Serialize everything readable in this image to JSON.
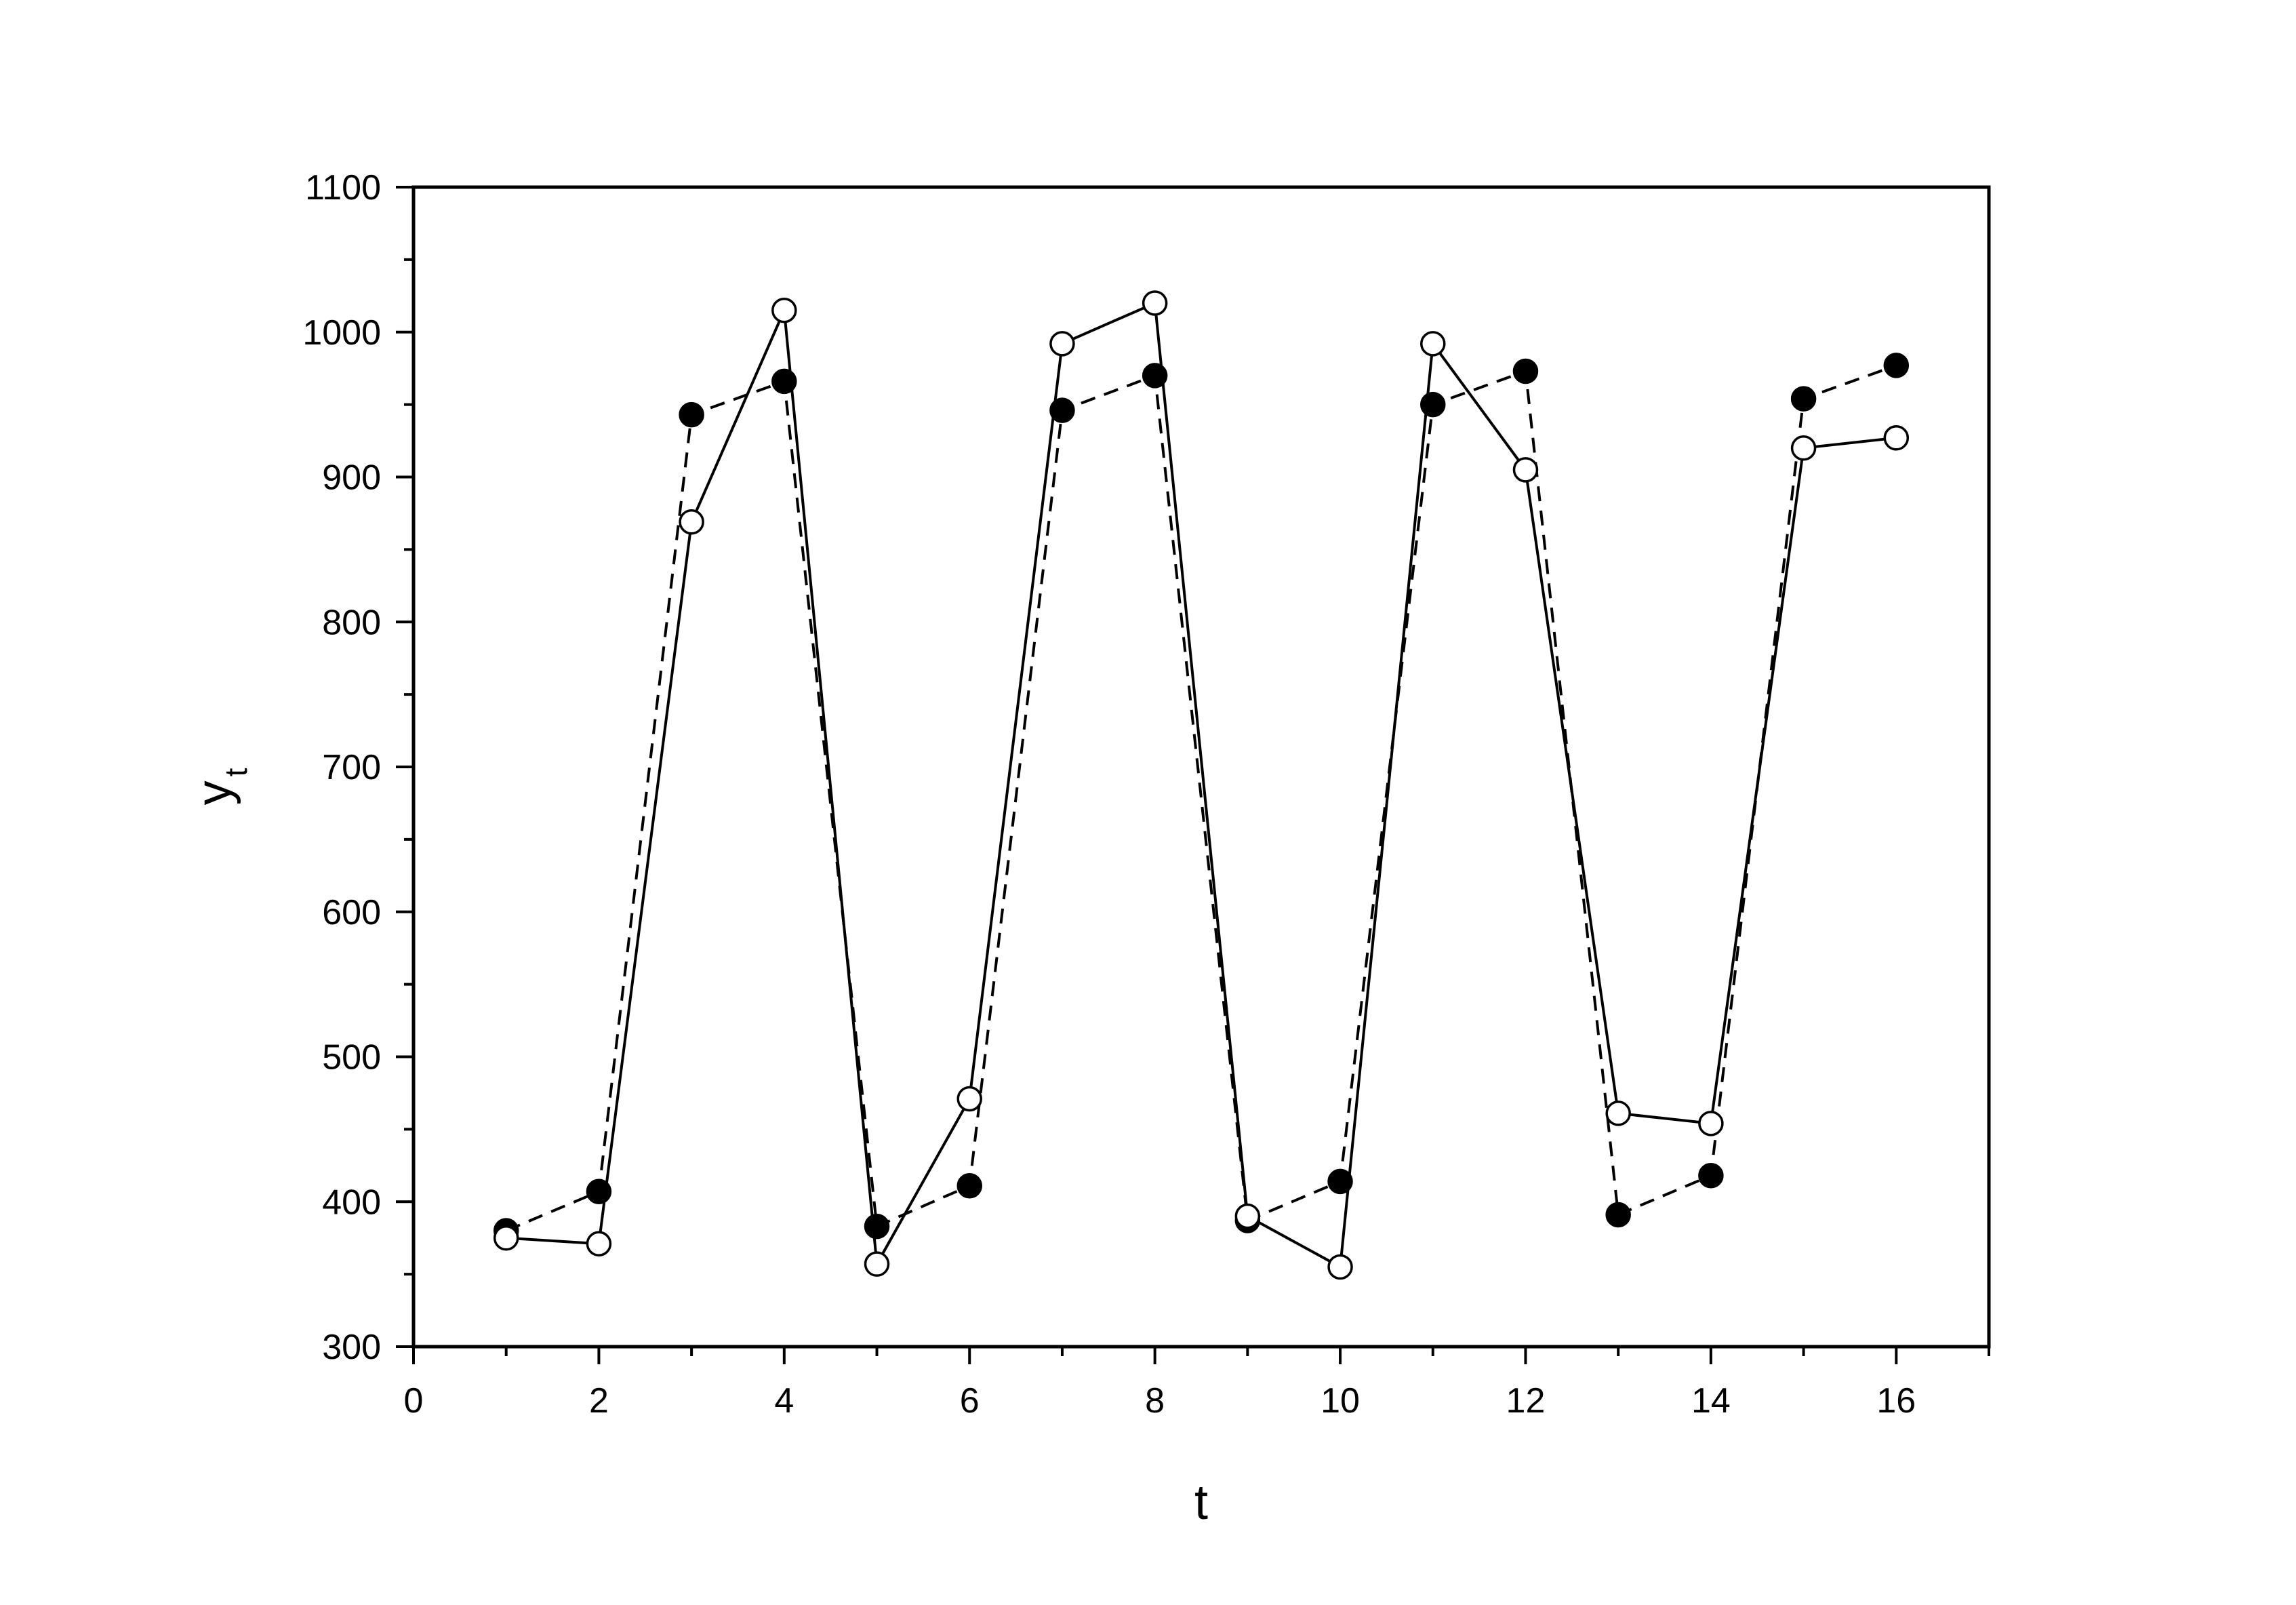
{
  "chart_data": {
    "type": "line",
    "title": "",
    "xlabel": "t",
    "ylabel": "y",
    "ylabel_subscript": "t",
    "xlim": [
      0,
      17
    ],
    "ylim": [
      300,
      1100
    ],
    "x_ticks": [
      0,
      2,
      4,
      6,
      8,
      10,
      12,
      14,
      16
    ],
    "x_tick_labels": [
      "0",
      "2",
      "4",
      "6",
      "8",
      "10",
      "12",
      "14",
      "16"
    ],
    "y_ticks": [
      300,
      400,
      500,
      600,
      700,
      800,
      900,
      1000,
      1100
    ],
    "y_tick_labels": [
      "300",
      "400",
      "500",
      "600",
      "700",
      "800",
      "900",
      "1000",
      "1100"
    ],
    "grid": false,
    "x": [
      1,
      2,
      3,
      4,
      5,
      6,
      7,
      8,
      9,
      10,
      11,
      12,
      13,
      14,
      15,
      16
    ],
    "series": [
      {
        "marker": "filled-circle",
        "line_style": "dashed",
        "color": "#000000",
        "values": [
          380,
          407,
          943,
          966,
          383,
          411,
          946,
          970,
          387,
          414,
          950,
          973,
          391,
          418,
          954,
          977
        ]
      },
      {
        "marker": "open-circle",
        "line_style": "solid",
        "color": "#000000",
        "values": [
          375,
          371,
          869,
          1015,
          357,
          471,
          992,
          1020,
          390,
          355,
          992,
          905,
          461,
          454,
          920,
          927
        ]
      }
    ]
  }
}
